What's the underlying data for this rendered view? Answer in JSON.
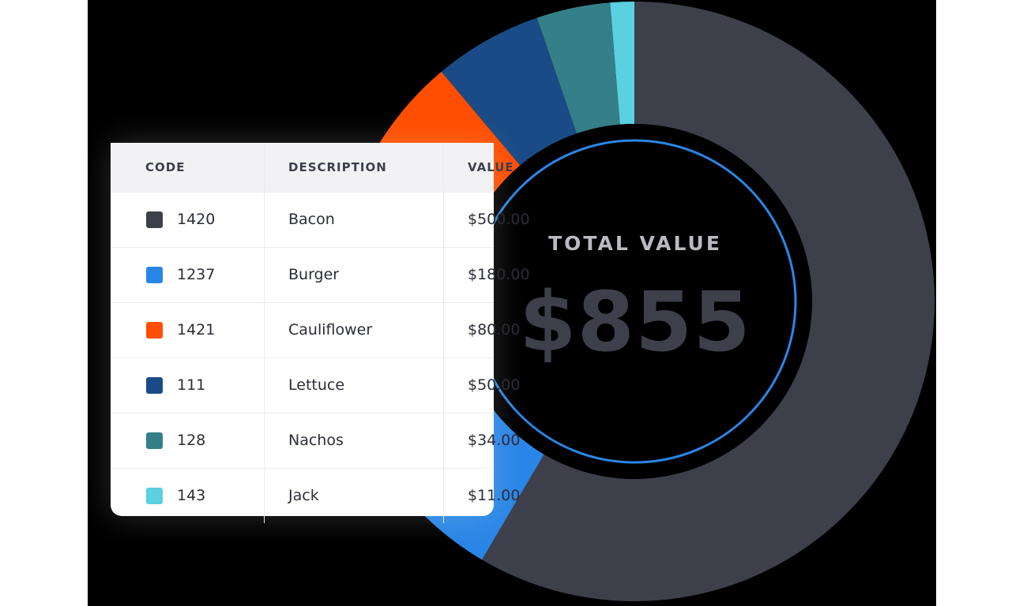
{
  "chart_data": {
    "type": "pie",
    "center_label": "TOTAL VALUE",
    "center_value": "$855",
    "slices": [
      {
        "code": "1420",
        "description": "Bacon",
        "value": 500,
        "value_label": "$500.00",
        "color": "#3d3f4b"
      },
      {
        "code": "1237",
        "description": "Burger",
        "value": 180,
        "value_label": "$180.00",
        "color": "#2a86e6"
      },
      {
        "code": "1421",
        "description": "Cauliflower",
        "value": 80,
        "value_label": "$80.00",
        "color": "#ff4e00"
      },
      {
        "code": "111",
        "description": "Lettuce",
        "value": 50,
        "value_label": "$50.00",
        "color": "#1a4b86"
      },
      {
        "code": "128",
        "description": "Nachos",
        "value": 34,
        "value_label": "$34.00",
        "color": "#357f88"
      },
      {
        "code": "143",
        "description": "Jack",
        "value": 11,
        "value_label": "$11.00",
        "color": "#5bd0e0"
      }
    ],
    "ring_color": "#2a86e6"
  },
  "table": {
    "headers": {
      "code": "CODE",
      "description": "DESCRIPTION",
      "value": "VALUE"
    }
  }
}
